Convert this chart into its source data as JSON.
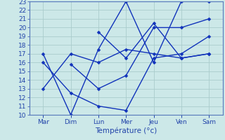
{
  "xlabel": "Température (°c)",
  "ylim": [
    10,
    23
  ],
  "yticks": [
    10,
    11,
    12,
    13,
    14,
    15,
    16,
    17,
    18,
    19,
    20,
    21,
    22,
    23
  ],
  "days": [
    "Mar",
    "Dim",
    "Lun",
    "Mer",
    "Jeu",
    "Ven",
    "Sam"
  ],
  "background_color": "#cce8e8",
  "grid_color": "#aacccc",
  "line_color": "#1133bb",
  "series": [
    [
      13.0,
      17.0,
      16.0,
      17.5,
      17.0,
      16.5,
      17.0
    ],
    [
      17.0,
      10.0,
      17.5,
      23.0,
      16.0,
      23.0,
      23.0
    ],
    [
      16.0,
      12.5,
      11.0,
      10.5,
      16.5,
      17.0,
      19.0
    ],
    [
      null,
      15.8,
      13.0,
      14.5,
      20.0,
      20.0,
      21.0
    ],
    [
      null,
      null,
      19.5,
      16.5,
      20.5,
      16.5,
      17.0
    ]
  ],
  "axis_fontsize": 6.5,
  "xlabel_fontsize": 7.5
}
